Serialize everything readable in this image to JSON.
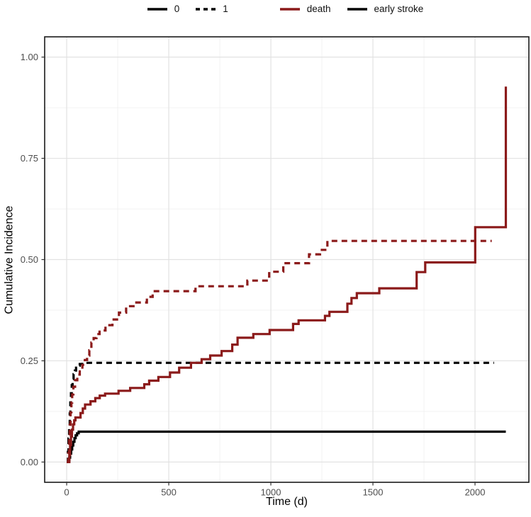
{
  "colors": {
    "death": "#8B1A1A",
    "early_stroke": "#000000",
    "grid_major": "#e2e2e2",
    "grid_minor": "#f1f1f1",
    "panel_border": "#1a1a1a",
    "tick_mark": "#333333",
    "tick_label": "#4d4d4d",
    "axis_title": "#000000"
  },
  "chart_data": {
    "type": "line",
    "subtype": "step",
    "title": "",
    "xlabel": "Time (d)",
    "ylabel": "Cumulative Incidence",
    "xlim": [
      0,
      2156
    ],
    "ylim": [
      0,
      1
    ],
    "grid": "on",
    "legend_position": "top",
    "x_ticks": {
      "values": [
        0,
        500,
        1000,
        1500,
        2000
      ],
      "labels": [
        "0",
        "500",
        "1000",
        "1500",
        "2000"
      ]
    },
    "y_ticks": {
      "values": [
        0,
        0.25,
        0.5,
        0.75,
        1
      ],
      "labels": [
        "0.00",
        "0.25",
        "0.50",
        "0.75",
        "1.00"
      ]
    },
    "legend": {
      "groups": [
        {
          "items": [
            {
              "label": "0",
              "color": "#000000",
              "dashed": false
            },
            {
              "label": "1",
              "color": "#000000",
              "dashed": true
            }
          ]
        },
        {
          "items": [
            {
              "label": "death",
              "color": "#8B1A1A",
              "dashed": false
            },
            {
              "label": "early stroke",
              "color": "#000000",
              "dashed": false
            }
          ]
        }
      ]
    },
    "series": [
      {
        "id": "early-stroke-0",
        "name": "early stroke (group 0)",
        "color": "#000000",
        "dashed": false,
        "points": [
          [
            0,
            0
          ],
          [
            8,
            0.004
          ],
          [
            13,
            0.011
          ],
          [
            17,
            0.021
          ],
          [
            22,
            0.031
          ],
          [
            27,
            0.041
          ],
          [
            32,
            0.05
          ],
          [
            38,
            0.059
          ],
          [
            44,
            0.066
          ],
          [
            51,
            0.071
          ],
          [
            59,
            0.075
          ],
          [
            2151,
            0.075
          ]
        ]
      },
      {
        "id": "early-stroke-1",
        "name": "early stroke (group 1)",
        "color": "#000000",
        "dashed": true,
        "points": [
          [
            0,
            0
          ],
          [
            6,
            0.025
          ],
          [
            9,
            0.058
          ],
          [
            12,
            0.09
          ],
          [
            15,
            0.12
          ],
          [
            18,
            0.147
          ],
          [
            21,
            0.17
          ],
          [
            25,
            0.19
          ],
          [
            29,
            0.205
          ],
          [
            34,
            0.217
          ],
          [
            40,
            0.226
          ],
          [
            46,
            0.233
          ],
          [
            54,
            0.238
          ],
          [
            64,
            0.242
          ],
          [
            76,
            0.245
          ],
          [
            2093,
            0.245
          ]
        ]
      },
      {
        "id": "death-0",
        "name": "death (group 0)",
        "color": "#8B1A1A",
        "dashed": false,
        "points": [
          [
            0,
            0
          ],
          [
            13,
            0.018
          ],
          [
            17,
            0.042
          ],
          [
            21,
            0.063
          ],
          [
            26,
            0.08
          ],
          [
            31,
            0.093
          ],
          [
            37,
            0.103
          ],
          [
            43,
            0.11
          ],
          [
            68,
            0.121
          ],
          [
            79,
            0.132
          ],
          [
            90,
            0.142
          ],
          [
            117,
            0.15
          ],
          [
            140,
            0.158
          ],
          [
            162,
            0.164
          ],
          [
            188,
            0.169
          ],
          [
            254,
            0.176
          ],
          [
            311,
            0.183
          ],
          [
            380,
            0.192
          ],
          [
            404,
            0.201
          ],
          [
            449,
            0.21
          ],
          [
            506,
            0.221
          ],
          [
            551,
            0.233
          ],
          [
            609,
            0.245
          ],
          [
            661,
            0.254
          ],
          [
            703,
            0.263
          ],
          [
            759,
            0.274
          ],
          [
            811,
            0.29
          ],
          [
            837,
            0.307
          ],
          [
            914,
            0.316
          ],
          [
            994,
            0.326
          ],
          [
            1109,
            0.341
          ],
          [
            1136,
            0.35
          ],
          [
            1265,
            0.361
          ],
          [
            1287,
            0.371
          ],
          [
            1375,
            0.391
          ],
          [
            1395,
            0.405
          ],
          [
            1421,
            0.417
          ],
          [
            1531,
            0.429
          ],
          [
            1714,
            0.469
          ],
          [
            1756,
            0.493
          ],
          [
            2001,
            0.58
          ],
          [
            2151,
            0.927
          ]
        ]
      },
      {
        "id": "death-1",
        "name": "death (group 1)",
        "color": "#8B1A1A",
        "dashed": true,
        "points": [
          [
            0,
            0
          ],
          [
            8,
            0.022
          ],
          [
            12,
            0.058
          ],
          [
            15,
            0.092
          ],
          [
            19,
            0.123
          ],
          [
            23,
            0.147
          ],
          [
            27,
            0.167
          ],
          [
            33,
            0.186
          ],
          [
            41,
            0.202
          ],
          [
            52,
            0.216
          ],
          [
            64,
            0.228
          ],
          [
            77,
            0.24
          ],
          [
            89,
            0.252
          ],
          [
            100,
            0.263
          ],
          [
            111,
            0.276
          ],
          [
            121,
            0.295
          ],
          [
            132,
            0.306
          ],
          [
            146,
            0.316
          ],
          [
            161,
            0.325
          ],
          [
            190,
            0.338
          ],
          [
            224,
            0.352
          ],
          [
            256,
            0.369
          ],
          [
            291,
            0.385
          ],
          [
            334,
            0.394
          ],
          [
            393,
            0.408
          ],
          [
            421,
            0.422
          ],
          [
            631,
            0.434
          ],
          [
            885,
            0.448
          ],
          [
            992,
            0.47
          ],
          [
            1061,
            0.491
          ],
          [
            1187,
            0.513
          ],
          [
            1241,
            0.524
          ],
          [
            1277,
            0.546
          ],
          [
            2082,
            0.546
          ]
        ]
      }
    ]
  }
}
